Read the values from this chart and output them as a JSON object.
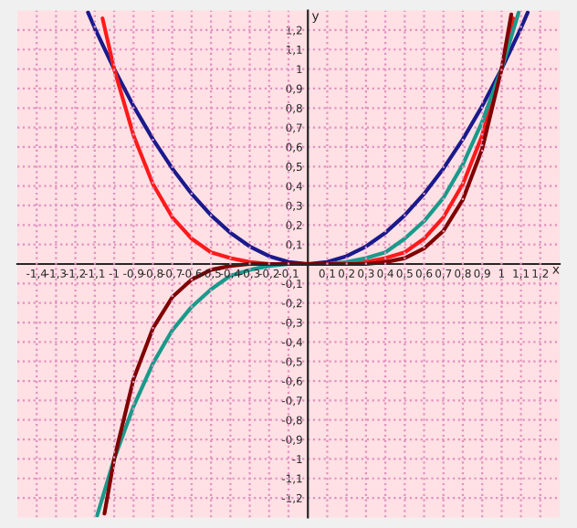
{
  "chart_data": {
    "type": "line",
    "xlabel": "x",
    "ylabel": "y",
    "xlim": [
      -1.5,
      1.3
    ],
    "ylim": [
      -1.3,
      1.3
    ],
    "xticks": [
      {
        "value": -1.4,
        "label": "-1,4"
      },
      {
        "value": -1.3,
        "label": "-1,3"
      },
      {
        "value": -1.2,
        "label": "-1,2"
      },
      {
        "value": -1.1,
        "label": "-1,1"
      },
      {
        "value": -1,
        "label": "-1"
      },
      {
        "value": -0.9,
        "label": "-0,9"
      },
      {
        "value": -0.8,
        "label": "-0,8"
      },
      {
        "value": -0.7,
        "label": "-0,7"
      },
      {
        "value": -0.6,
        "label": "-0,6"
      },
      {
        "value": -0.5,
        "label": "-0,5"
      },
      {
        "value": -0.4,
        "label": "-0,4"
      },
      {
        "value": -0.3,
        "label": "-0,3"
      },
      {
        "value": -0.2,
        "label": "-0,2"
      },
      {
        "value": -0.1,
        "label": "-0,1"
      },
      {
        "value": 0.1,
        "label": "0,1"
      },
      {
        "value": 0.2,
        "label": "0,2"
      },
      {
        "value": 0.3,
        "label": "0,3"
      },
      {
        "value": 0.4,
        "label": "0,4"
      },
      {
        "value": 0.5,
        "label": "0,5"
      },
      {
        "value": 0.6,
        "label": "0,6"
      },
      {
        "value": 0.7,
        "label": "0,7"
      },
      {
        "value": 0.8,
        "label": "0,8"
      },
      {
        "value": 0.9,
        "label": "0,9"
      },
      {
        "value": 1,
        "label": "1"
      },
      {
        "value": 1.1,
        "label": "1,1"
      },
      {
        "value": 1.2,
        "label": "1,2"
      }
    ],
    "yticks": [
      {
        "value": -1.2,
        "label": "-1,2"
      },
      {
        "value": -1.1,
        "label": "-1,1"
      },
      {
        "value": -1,
        "label": "-1"
      },
      {
        "value": -0.9,
        "label": "-0,9"
      },
      {
        "value": -0.8,
        "label": "-0,8"
      },
      {
        "value": -0.7,
        "label": "-0,7"
      },
      {
        "value": -0.6,
        "label": "-0,6"
      },
      {
        "value": -0.5,
        "label": "-0,5"
      },
      {
        "value": -0.4,
        "label": "-0,4"
      },
      {
        "value": -0.3,
        "label": "-0,3"
      },
      {
        "value": -0.2,
        "label": "-0,2"
      },
      {
        "value": -0.1,
        "label": "-0,1"
      },
      {
        "value": 0.1,
        "label": "0,1"
      },
      {
        "value": 0.2,
        "label": "0,2"
      },
      {
        "value": 0.3,
        "label": "0,3"
      },
      {
        "value": 0.4,
        "label": "0,4"
      },
      {
        "value": 0.5,
        "label": "0,5"
      },
      {
        "value": 0.6,
        "label": "0,6"
      },
      {
        "value": 0.7,
        "label": "0,7"
      },
      {
        "value": 0.8,
        "label": "0,8"
      },
      {
        "value": 0.9,
        "label": "0,9"
      },
      {
        "value": 1,
        "label": "1"
      },
      {
        "value": 1.1,
        "label": "1,1"
      },
      {
        "value": 1.2,
        "label": "1,2"
      }
    ],
    "grid": true,
    "marker": "none",
    "line_style": "solid",
    "series": [
      {
        "color": "#1a1a8c",
        "x": [
          -1.135,
          -1.1,
          -1,
          -0.9,
          -0.8,
          -0.7,
          -0.6,
          -0.5,
          -0.4,
          -0.3,
          -0.2,
          -0.1,
          0,
          0.1,
          0.2,
          0.3,
          0.4,
          0.5,
          0.6,
          0.7,
          0.8,
          0.9,
          1,
          1.1,
          1.135
        ],
        "values": [
          1.29,
          1.21,
          1,
          0.81,
          0.64,
          0.49,
          0.36,
          0.25,
          0.16,
          0.09,
          0.04,
          0.01,
          0,
          0.01,
          0.04,
          0.09,
          0.16,
          0.25,
          0.36,
          0.49,
          0.64,
          0.81,
          1,
          1.21,
          1.29
        ]
      },
      {
        "color": "#ff1a1a",
        "x": [
          -1.06,
          -1,
          -0.9,
          -0.8,
          -0.7,
          -0.6,
          -0.5,
          -0.4,
          -0.3,
          -0.2,
          0,
          0.2,
          0.3,
          0.4,
          0.5,
          0.6,
          0.7,
          0.8,
          0.9,
          1,
          1.06
        ],
        "values": [
          1.26,
          1,
          0.66,
          0.41,
          0.24,
          0.13,
          0.06,
          0.03,
          0.01,
          0,
          0,
          0,
          0.01,
          0.03,
          0.06,
          0.13,
          0.24,
          0.41,
          0.66,
          1,
          1.26
        ]
      },
      {
        "color": "#1a9a8a",
        "x": [
          -1.088,
          -1,
          -0.9,
          -0.8,
          -0.7,
          -0.6,
          -0.5,
          -0.4,
          -0.3,
          -0.2,
          -0.1,
          0,
          0.1,
          0.2,
          0.3,
          0.4,
          0.5,
          0.6,
          0.7,
          0.8,
          0.9,
          1,
          1.088
        ],
        "values": [
          -1.29,
          -1,
          -0.73,
          -0.51,
          -0.34,
          -0.22,
          -0.13,
          -0.06,
          -0.03,
          -0.01,
          0,
          0,
          0,
          0.01,
          0.03,
          0.06,
          0.13,
          0.22,
          0.34,
          0.51,
          0.73,
          1,
          1.29
        ]
      },
      {
        "color": "#800000",
        "x": [
          -1.05,
          -1,
          -0.9,
          -0.8,
          -0.7,
          -0.6,
          -0.5,
          -0.4,
          -0.3,
          0,
          0.3,
          0.4,
          0.5,
          0.6,
          0.7,
          0.8,
          0.9,
          1,
          1.05
        ],
        "values": [
          -1.28,
          -1,
          -0.59,
          -0.33,
          -0.17,
          -0.08,
          -0.03,
          -0.01,
          0,
          0,
          0,
          0.01,
          0.03,
          0.08,
          0.17,
          0.33,
          0.59,
          1,
          1.28
        ]
      }
    ]
  }
}
